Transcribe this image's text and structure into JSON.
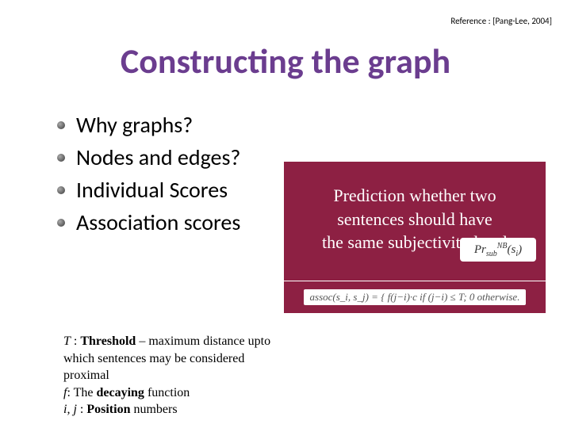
{
  "reference": "Reference : [Pang-Lee, 2004]",
  "title": "Constructing the graph",
  "bullets": [
    "Why graphs?",
    "Nodes and edges?",
    "Individual Scores",
    "Association scores"
  ],
  "callout": {
    "line1": "Prediction whether two",
    "line2": "sentences should have",
    "line3": "the same subjectivity level",
    "bg_color": "#8d2043",
    "text_color": "#ffffff"
  },
  "formula_badge": "Pr_sub^NB(s_i)",
  "assoc_formula": "assoc(s_i, s_j) = { f(j−i)·c  if (j−i) ≤ T;  0  otherwise.",
  "notes": {
    "l1_pre": "T",
    "l1_mid": " : ",
    "l1_bold": "Threshold",
    "l1_rest": " – maximum distance upto",
    "l2": " which sentences may be considered",
    "l3": "proximal",
    "l4_pre": "f",
    "l4_mid": ": The ",
    "l4_bold": "decaying",
    "l4_rest": " function",
    "l5_pre": "i, j",
    "l5_mid": " : ",
    "l5_bold": "Position",
    "l5_rest": " numbers"
  },
  "colors": {
    "title": "#6b3d8f",
    "callout_bg": "#8d2043",
    "background": "#ffffff"
  }
}
